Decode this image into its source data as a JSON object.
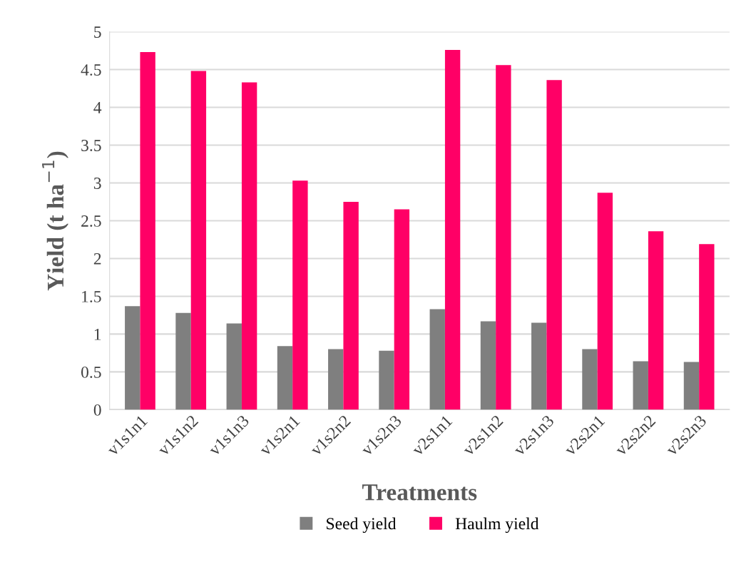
{
  "chart_data": {
    "type": "bar",
    "xlabel": "Treatments",
    "ylabel": "Yield (t ha$^{−1}$)",
    "categories": [
      "v1s1n1",
      "v1s1n2",
      "v1s1n3",
      "v1s2n1",
      "v1s2n2",
      "v1s2n3",
      "v2s1n1",
      "v2s1n2",
      "v2s1n3",
      "v2s2n1",
      "v2s2n2",
      "v2s2n3"
    ],
    "series": [
      {
        "name": "Seed yield",
        "color": "#7f7f7f",
        "values": [
          1.37,
          1.28,
          1.14,
          0.84,
          0.8,
          0.78,
          1.33,
          1.17,
          1.15,
          0.8,
          0.64,
          0.63
        ]
      },
      {
        "name": "Haulm yield",
        "color": "#ff0066",
        "values": [
          4.73,
          4.48,
          4.33,
          3.03,
          2.75,
          2.65,
          4.76,
          4.56,
          4.36,
          2.87,
          2.36,
          2.19
        ]
      }
    ],
    "ylim": [
      0,
      5
    ],
    "yticks": [
      0,
      0.5,
      1,
      1.5,
      2,
      2.5,
      3,
      3.5,
      4,
      4.5,
      5
    ],
    "grid": "y",
    "legend": "bottom"
  }
}
